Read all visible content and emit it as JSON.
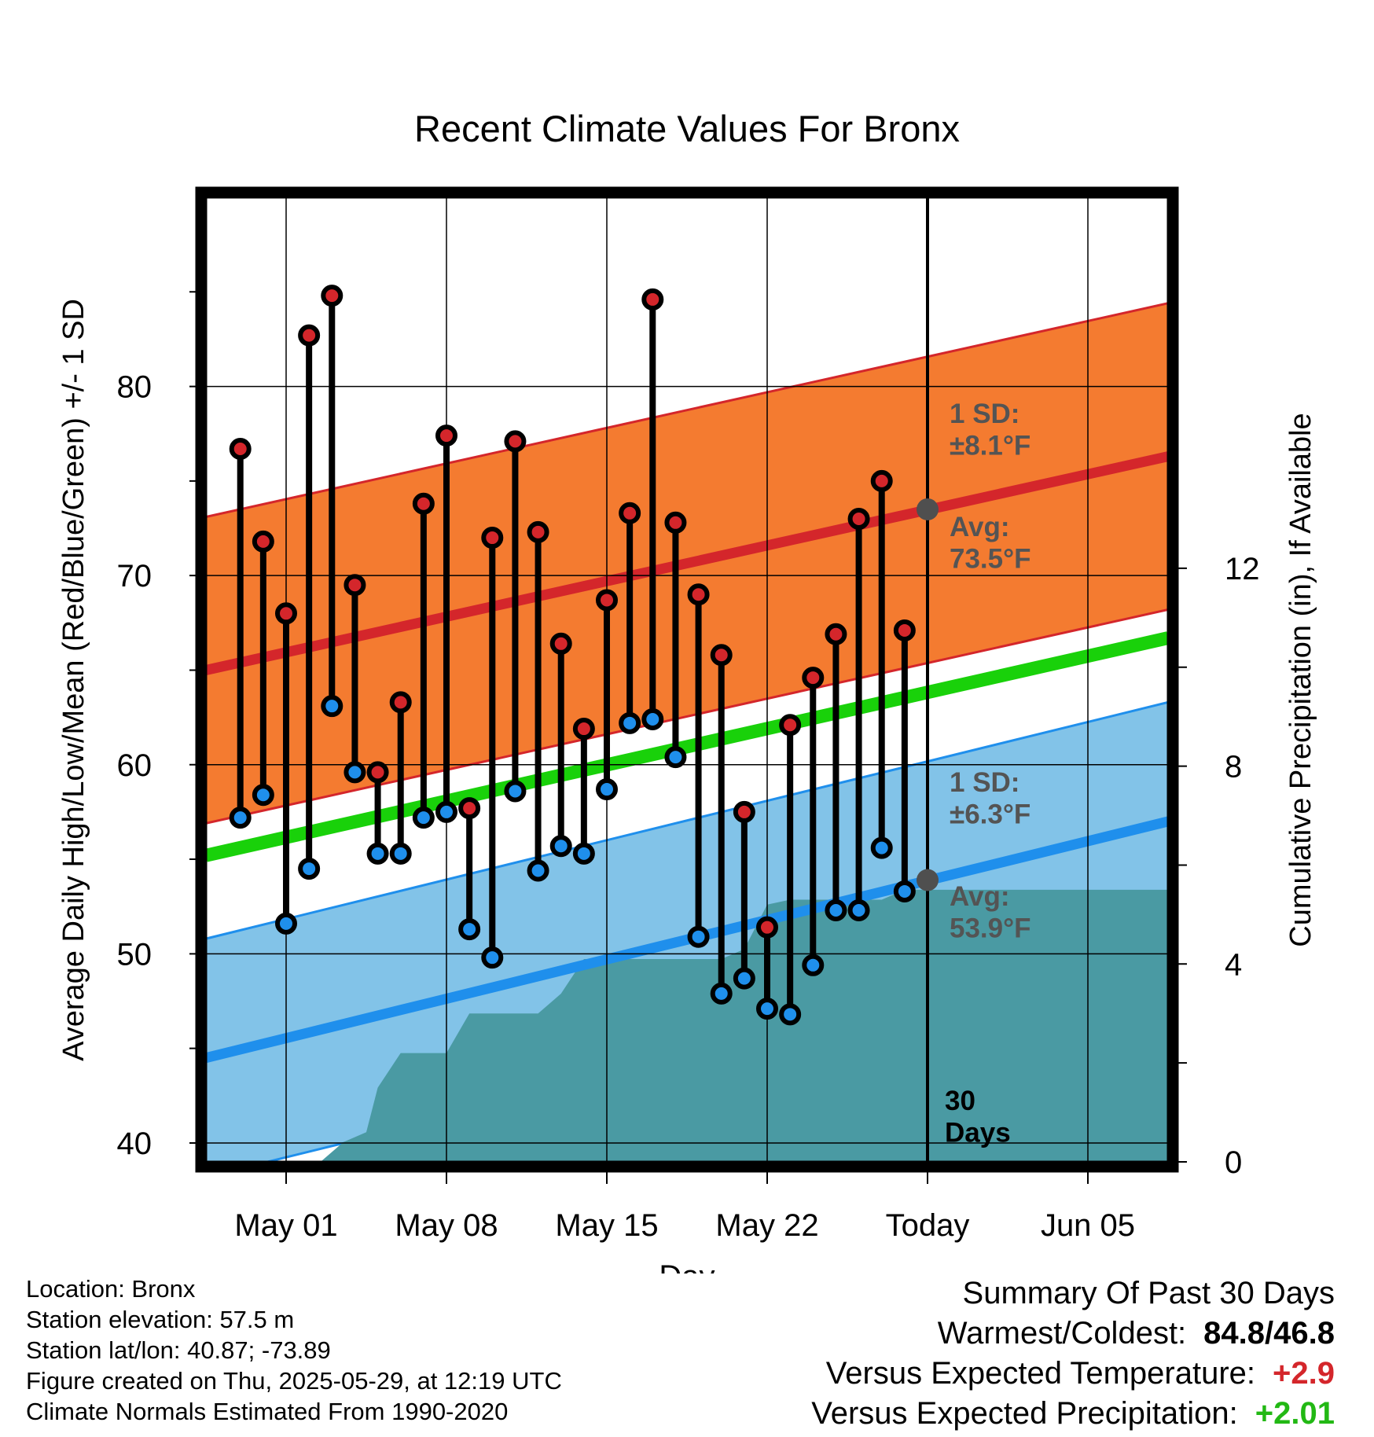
{
  "chart_data": {
    "type": "line",
    "title": "Recent Climate Values For Bronx",
    "xlabel": "Day",
    "ylabel": "Average Daily High/Low/Mean (Red/Blue/Green) +/- 1 SD",
    "y2label": "Cumulative Precipitation (in), If Available",
    "ylim": [
      39,
      90
    ],
    "y2lim": [
      0,
      19.5
    ],
    "xlim": [
      -3.5,
      38.5
    ],
    "x_tick_labels": [
      "May 01",
      "May 08",
      "May 15",
      "May 22",
      "Today",
      "Jun 05"
    ],
    "x_tick_days": [
      0,
      7,
      14,
      21,
      28,
      35
    ],
    "y_tick_labels": [
      "40",
      "50",
      "60",
      "70",
      "80"
    ],
    "y2_tick_labels": [
      "0",
      "4",
      "8",
      "12"
    ],
    "grid": true,
    "today_line_label": "30\nDays",
    "days": [
      "Apr 29",
      "Apr 30",
      "May 01",
      "May 02",
      "May 03",
      "May 04",
      "May 05",
      "May 06",
      "May 07",
      "May 08",
      "May 09",
      "May 10",
      "May 11",
      "May 12",
      "May 13",
      "May 14",
      "May 15",
      "May 16",
      "May 17",
      "May 18",
      "May 19",
      "May 20",
      "May 21",
      "May 22",
      "May 23",
      "May 24",
      "May 25",
      "May 26",
      "May 27",
      "May 28"
    ],
    "series": [
      {
        "name": "High",
        "values": [
          76.7,
          71.8,
          68.0,
          82.7,
          84.8,
          69.5,
          59.6,
          63.3,
          73.8,
          77.4,
          57.7,
          72.0,
          77.1,
          72.3,
          66.4,
          61.9,
          68.7,
          73.3,
          84.6,
          72.8,
          69.0,
          65.8,
          57.5,
          51.4,
          62.1,
          64.6,
          66.9,
          73.0,
          75.0,
          67.1
        ]
      },
      {
        "name": "Low",
        "values": [
          57.2,
          58.4,
          51.6,
          54.5,
          63.1,
          59.6,
          55.3,
          55.3,
          57.2,
          57.5,
          51.3,
          49.8,
          58.6,
          54.4,
          55.7,
          55.3,
          58.7,
          62.2,
          62.4,
          60.4,
          50.9,
          47.9,
          48.7,
          47.1,
          46.8,
          49.4,
          52.3,
          52.3,
          55.6,
          53.3
        ]
      },
      {
        "name": "Normal High",
        "start": 65.0,
        "end": 76.3
      },
      {
        "name": "Normal Low",
        "start": 44.5,
        "end": 57.0
      },
      {
        "name": "Normal Mean",
        "start": 55.2,
        "end": 66.7
      },
      {
        "name": "Precipitation",
        "day_offsets": [
          -3.5,
          1.5,
          2.5,
          3.5,
          4.0,
          5.0,
          6.0,
          7.0,
          8.0,
          9.0,
          10.0,
          11.0,
          12.0,
          13.0,
          14.0,
          15.0,
          16.0,
          17.0,
          18.0,
          19.0,
          20.0,
          21.0,
          22.0,
          23.0,
          24.0,
          25.0,
          26.0,
          27.0,
          28.0,
          38.5
        ],
        "values": [
          0,
          0,
          0.4,
          0.6,
          1.5,
          2.2,
          2.2,
          2.2,
          3.0,
          3.0,
          3.0,
          3.0,
          3.4,
          4.1,
          4.1,
          4.1,
          4.1,
          4.1,
          4.1,
          4.1,
          4.3,
          5.2,
          5.3,
          5.3,
          5.3,
          5.3,
          5.3,
          5.5,
          5.5,
          5.5
        ]
      }
    ],
    "sd_high": 8.1,
    "sd_low": 6.3,
    "high_band_label": "1 SD:\n±8.1°F",
    "high_avg_label": "Avg:\n73.5°F",
    "low_band_label": "1 SD:\n±6.3°F",
    "low_avg_label": "Avg:\n53.9°F",
    "today_high_avg": 73.5,
    "today_low_avg": 53.9,
    "colors": {
      "high_band": "#f47b30",
      "high_line": "#d4262b",
      "low_band": "#82c3e8",
      "low_line": "#1f8fec",
      "mean_line": "#19d10a",
      "precip": "#4a9aa3",
      "high_dot": "#d4262b",
      "low_dot": "#1f8fec",
      "annot": "#545454"
    }
  },
  "info": {
    "location": "Location: Bronx",
    "elevation": "Station elevation: 57.5 m",
    "latlon": "Station lat/lon: 40.87; -73.89",
    "created": "Figure created on Thu, 2025-05-29, at 12:19 UTC",
    "normals": "Climate Normals Estimated From 1990-2020"
  },
  "summary": {
    "title": "Summary Of Past 30 Days",
    "warm_cold_label": "Warmest/Coldest:",
    "warm_cold_value": "84.8/46.8",
    "temp_label": "Versus Expected Temperature:",
    "temp_value": "+2.9",
    "precip_label": "Versus Expected Precipitation:",
    "precip_value": "+2.01"
  }
}
